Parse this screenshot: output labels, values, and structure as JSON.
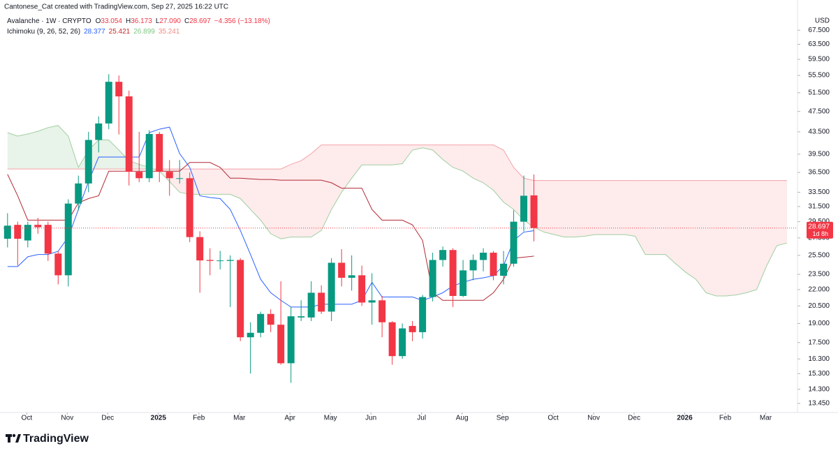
{
  "header": {
    "credit": "Cantonese_Cat created with TradingView.com, Sep 27, 2025 16:22 UTC",
    "symbol": "Avalanche · 1W · CRYPTO",
    "ohlc": [
      {
        "key": "O",
        "value": "33.054"
      },
      {
        "key": "H",
        "value": "36.173"
      },
      {
        "key": "L",
        "value": "27.090"
      },
      {
        "key": "C",
        "value": "28.697"
      }
    ],
    "value_color": "#f23645",
    "change": "−4.356 (−13.18%)",
    "indicator": "Ichimoku (9, 26, 52, 26)",
    "indicator_values": [
      {
        "value": "28.377",
        "color": "#2962ff"
      },
      {
        "value": "25.421",
        "color": "#c62828"
      },
      {
        "value": "26.899",
        "color": "#81c784"
      },
      {
        "value": "35.241",
        "color": "#f28b82"
      }
    ]
  },
  "chart_data": {
    "type": "candlestick",
    "currency": "USD",
    "log_scale": true,
    "grid": false,
    "xlim": [
      -0.4,
      77.9
    ],
    "xticks": [
      {
        "value": 1.9,
        "label": "Oct"
      },
      {
        "value": 5.9,
        "label": "Nov"
      },
      {
        "value": 9.9,
        "label": "Dec"
      },
      {
        "value": 14.9,
        "label": "2025"
      },
      {
        "value": 18.9,
        "label": "Feb"
      },
      {
        "value": 22.9,
        "label": "Mar"
      },
      {
        "value": 27.9,
        "label": "Apr"
      },
      {
        "value": 31.9,
        "label": "May"
      },
      {
        "value": 35.9,
        "label": "Jun"
      },
      {
        "value": 40.9,
        "label": "Jul"
      },
      {
        "value": 44.9,
        "label": "Aug"
      },
      {
        "value": 48.9,
        "label": "Sep"
      },
      {
        "value": 53.9,
        "label": "Oct"
      },
      {
        "value": 57.9,
        "label": "Nov"
      },
      {
        "value": 61.9,
        "label": "Dec"
      },
      {
        "value": 66.9,
        "label": "2026"
      },
      {
        "value": 70.9,
        "label": "Feb"
      },
      {
        "value": 74.9,
        "label": "Mar"
      }
    ],
    "ylim": [
      12.97,
      76.9
    ],
    "yticks": [
      {
        "value": 67.5,
        "label": "67.500"
      },
      {
        "value": 63.5,
        "label": "63.500"
      },
      {
        "value": 59.5,
        "label": "59.500"
      },
      {
        "value": 55.5,
        "label": "55.500"
      },
      {
        "value": 51.5,
        "label": "51.500"
      },
      {
        "value": 47.5,
        "label": "47.500"
      },
      {
        "value": 43.5,
        "label": "43.500"
      },
      {
        "value": 39.5,
        "label": "39.500"
      },
      {
        "value": 36.5,
        "label": "36.500"
      },
      {
        "value": 33.5,
        "label": "33.500"
      },
      {
        "value": 31.5,
        "label": "31.500"
      },
      {
        "value": 29.5,
        "label": "29.500"
      },
      {
        "value": 27.5,
        "label": "27.500"
      },
      {
        "value": 25.5,
        "label": "25.500"
      },
      {
        "value": 23.5,
        "label": "23.500"
      },
      {
        "value": 22,
        "label": "22.000"
      },
      {
        "value": 20.5,
        "label": "20.500"
      },
      {
        "value": 19,
        "label": "19.000"
      },
      {
        "value": 17.5,
        "label": "17.500"
      },
      {
        "value": 16.3,
        "label": "16.300"
      },
      {
        "value": 15.3,
        "label": "15.300"
      },
      {
        "value": 14.3,
        "label": "14.300"
      },
      {
        "value": 13.45,
        "label": "13.450"
      }
    ],
    "up_color": "#089981",
    "down_color": "#f23645",
    "candles": {
      "open": [
        27.4,
        29.1,
        27.2,
        29.1,
        29.1,
        25.7,
        23.4,
        31.9,
        34.8,
        42.0,
        45.1,
        54.0,
        50.7,
        36.6,
        35.6,
        43.1,
        36.6,
        35.5,
        35.6,
        27.6,
        25.0,
        24.9,
        24.9,
        25.0,
        17.9,
        18.25,
        19.8,
        18.9,
        16.0,
        19.5,
        19.5,
        21.7,
        20.0,
        24.7,
        23.15,
        23.4,
        20.8,
        21.0,
        19.1,
        16.5,
        18.8,
        18.3,
        21.3,
        25.0,
        26.1,
        21.4,
        23.9,
        25.0,
        25.8,
        23.35,
        24.6,
        29.5,
        33.054
      ],
      "high": [
        30.6,
        29.5,
        29.5,
        30.0,
        29.5,
        26.0,
        32.5,
        36.0,
        43.5,
        46.5,
        55.8,
        55.5,
        52.0,
        43.5,
        43.8,
        43.5,
        38.5,
        38.5,
        36.5,
        28.3,
        26.3,
        26.0,
        25.5,
        25.2,
        19.1,
        20.0,
        20.2,
        22.8,
        20.4,
        21.0,
        22.8,
        22.4,
        25.2,
        26.2,
        25.5,
        24.4,
        23.6,
        21.4,
        19.2,
        19.0,
        19.2,
        21.5,
        25.8,
        26.5,
        26.3,
        25.0,
        25.6,
        26.3,
        26.0,
        26.0,
        31.0,
        36.0,
        36.173
      ],
      "low": [
        26.4,
        24.4,
        26.4,
        28.0,
        24.9,
        22.5,
        22.3,
        31.0,
        33.5,
        39.8,
        44.0,
        43.0,
        34.5,
        35.0,
        35.0,
        35.0,
        33.0,
        34.8,
        27.0,
        21.7,
        23.4,
        24.0,
        20.4,
        17.6,
        15.3,
        17.9,
        18.3,
        15.9,
        14.7,
        19.2,
        19.2,
        19.8,
        19.2,
        22.3,
        21.9,
        20.5,
        18.9,
        17.9,
        15.9,
        16.3,
        17.6,
        17.8,
        20.9,
        24.3,
        20.4,
        21.3,
        22.9,
        23.8,
        22.9,
        22.5,
        24.3,
        28.3,
        27.09
      ],
      "close": [
        29.0,
        27.4,
        29.1,
        28.8,
        25.7,
        23.4,
        31.9,
        34.8,
        42.0,
        45.1,
        54.0,
        50.7,
        36.6,
        35.6,
        43.1,
        36.6,
        35.6,
        35.6,
        27.6,
        24.95,
        24.9,
        24.95,
        25.0,
        17.9,
        18.25,
        19.8,
        18.9,
        16.0,
        19.6,
        19.6,
        21.7,
        20.0,
        24.7,
        23.15,
        23.4,
        20.8,
        21.0,
        19.1,
        16.5,
        18.6,
        18.3,
        21.3,
        25.0,
        26.1,
        21.4,
        23.9,
        25.0,
        25.8,
        23.35,
        24.6,
        29.5,
        33.0,
        28.697
      ]
    },
    "lines": [
      {
        "color": "#2962ff",
        "values": [
          24.3,
          24.3,
          25.35,
          25.6,
          25.6,
          25.96,
          27.6,
          31.1,
          35.1,
          39.0,
          39.0,
          39.0,
          39.0,
          39.0,
          43.35,
          44.0,
          44.4,
          39.6,
          37.3,
          33.0,
          32.75,
          32.6,
          31.1,
          28.4,
          25.6,
          23.0,
          21.7,
          21.0,
          20.4,
          20.4,
          20.4,
          20.65,
          20.65,
          20.65,
          20.65,
          21.0,
          22.7,
          21.3,
          21.3,
          21.3,
          21.3,
          21.0,
          21.3,
          21.7,
          22.35,
          22.7,
          23.0,
          23.15,
          23.35,
          24.4,
          27.2,
          28.2,
          28.377
        ]
      },
      {
        "color": "#b22833",
        "values": [
          36.2,
          33.0,
          29.7,
          29.7,
          29.7,
          29.7,
          29.7,
          32.0,
          32.6,
          33.0,
          36.7,
          36.7,
          36.7,
          36.7,
          36.7,
          36.7,
          36.7,
          36.7,
          38.1,
          38.1,
          38.1,
          37.3,
          35.6,
          35.6,
          35.5,
          35.4,
          35.4,
          35.3,
          35.3,
          35.3,
          35.3,
          35.3,
          34.9,
          34.1,
          34.1,
          34.1,
          31.1,
          29.7,
          29.7,
          29.7,
          29.1,
          27.2,
          21.7,
          21.0,
          21.0,
          21.0,
          21.0,
          21.0,
          21.7,
          23.0,
          25.2,
          25.3,
          25.421
        ]
      }
    ],
    "cloud": {
      "up_fill": "rgba(67,160,71,0.12)",
      "down_fill": "rgba(242,54,69,0.10)",
      "span_a": {
        "color": "#9fcf9f",
        "values": [
          43.35,
          42.7,
          43.1,
          43.6,
          44.3,
          44.7,
          42.7,
          37.3,
          40.2,
          42.0,
          42.0,
          40.2,
          38.4,
          37.8,
          37.3,
          36.7,
          35.1,
          33.5,
          33.2,
          33.2,
          33.2,
          33.2,
          33.2,
          32.6,
          31.1,
          29.7,
          28.0,
          27.4,
          27.6,
          27.6,
          27.6,
          28.4,
          31.1,
          33.5,
          35.6,
          37.7,
          37.7,
          37.7,
          37.7,
          37.9,
          40.2,
          40.6,
          40.2,
          38.6,
          37.3,
          36.7,
          35.6,
          34.9,
          33.8,
          32.1,
          31.1,
          29.7,
          28.8,
          28.2,
          27.9,
          27.6,
          27.6,
          27.7,
          27.9,
          27.9,
          27.9,
          27.9,
          27.7,
          25.6,
          25.6,
          25.6,
          24.6,
          23.7,
          23.0,
          21.7,
          21.4,
          21.4,
          21.5,
          21.7,
          22.0,
          24.4,
          26.6,
          26.899
        ]
      },
      "span_b": {
        "color": "#f4a3a8",
        "values": [
          37.05,
          37.05,
          37.05,
          37.05,
          37.05,
          37.05,
          37.05,
          37.05,
          37.05,
          37.05,
          37.05,
          37.05,
          37.05,
          37.05,
          37.05,
          37.05,
          37.05,
          37.05,
          37.05,
          37.05,
          37.05,
          37.05,
          37.05,
          37.05,
          37.05,
          37.05,
          37.05,
          37.05,
          37.8,
          38.4,
          39.6,
          41.1,
          41.1,
          41.1,
          41.1,
          41.1,
          41.1,
          41.1,
          41.1,
          41.1,
          41.1,
          41.1,
          41.1,
          41.1,
          41.1,
          41.1,
          41.1,
          41.1,
          41.1,
          40.2,
          37.3,
          35.6,
          35.241,
          35.241,
          35.241,
          35.241,
          35.241,
          35.241,
          35.241,
          35.241,
          35.241,
          35.241,
          35.241,
          35.241,
          35.241,
          35.241,
          35.241,
          35.241,
          35.241,
          35.241,
          35.241,
          35.241,
          35.241,
          35.241,
          35.241,
          35.241,
          35.241,
          35.241
        ]
      }
    },
    "last_price_label": "28.697",
    "countdown": "1d 8h"
  },
  "footer": {
    "brand": "TradingView"
  }
}
